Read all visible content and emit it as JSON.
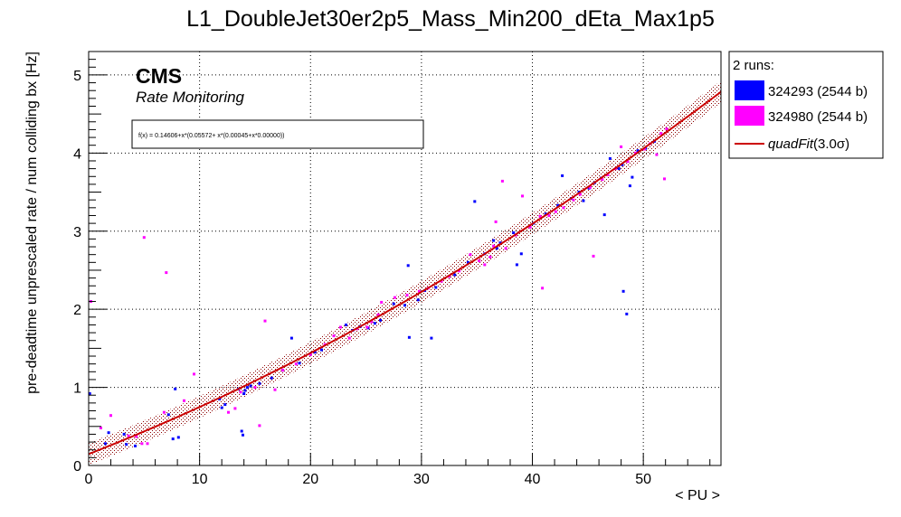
{
  "chart_data": {
    "type": "scatter",
    "title": "L1_DoubleJet30er2p5_Mass_Min200_dEta_Max1p5",
    "xlabel": "< PU >",
    "ylabel": "pre-deadtime unprescaled rate / num colliding bx [Hz]",
    "xlim": [
      0,
      57
    ],
    "ylim": [
      0,
      5.3
    ],
    "x_ticks": [
      0,
      10,
      20,
      30,
      40,
      50
    ],
    "y_ticks": [
      0,
      1,
      2,
      3,
      4,
      5
    ],
    "grid": true,
    "legend_position": "right, outside plot",
    "banner": {
      "experiment": "CMS",
      "subtitle": "Rate Monitoring"
    },
    "fit_formula": "f(x) = 0.14606+x*(0.05572+ x*(0.00045+x*0.00000))",
    "fit": {
      "name": "quadFit(3.0σ)",
      "coefficients": [
        0.14606,
        0.05572,
        0.00045,
        0.0
      ],
      "band_halfwidth": 0.14,
      "color": "#cc0000",
      "band_color": "#8b0000"
    },
    "legend": {
      "header": "2 runs:",
      "entries": [
        {
          "label": "324293 (2544 b)",
          "color": "#0000ff"
        },
        {
          "label": "324980 (2544 b)",
          "color": "#ff00ff"
        },
        {
          "label_prefix": "quadFit",
          "label_suffix": "(3.0σ)",
          "color": "#cc0000"
        }
      ]
    },
    "series": [
      {
        "name": "324293 (2544 b)",
        "color": "#0000ff",
        "points": [
          [
            0.1,
            0.92
          ],
          [
            1.5,
            0.28
          ],
          [
            1.8,
            0.42
          ],
          [
            3.2,
            0.4
          ],
          [
            3.4,
            0.27
          ],
          [
            4.2,
            0.25
          ],
          [
            7.2,
            0.65
          ],
          [
            7.6,
            0.34
          ],
          [
            7.8,
            0.98
          ],
          [
            8.1,
            0.36
          ],
          [
            11.8,
            0.85
          ],
          [
            12.0,
            0.74
          ],
          [
            12.3,
            0.78
          ],
          [
            13.5,
            0.98
          ],
          [
            13.8,
            0.44
          ],
          [
            13.9,
            0.39
          ],
          [
            14.0,
            0.92
          ],
          [
            14.1,
            0.96
          ],
          [
            14.3,
            1.0
          ],
          [
            14.6,
            1.02
          ],
          [
            15.4,
            1.05
          ],
          [
            16.5,
            1.12
          ],
          [
            17.5,
            1.22
          ],
          [
            18.3,
            1.63
          ],
          [
            19.0,
            1.31
          ],
          [
            20.4,
            1.45
          ],
          [
            21.0,
            1.48
          ],
          [
            23.2,
            1.8
          ],
          [
            23.8,
            1.73
          ],
          [
            24.5,
            1.78
          ],
          [
            25.2,
            1.76
          ],
          [
            25.8,
            1.82
          ],
          [
            26.3,
            1.86
          ],
          [
            27.5,
            2.07
          ],
          [
            28.5,
            2.05
          ],
          [
            28.8,
            2.56
          ],
          [
            28.9,
            1.64
          ],
          [
            29.7,
            2.12
          ],
          [
            30.3,
            2.24
          ],
          [
            30.9,
            1.63
          ],
          [
            31.3,
            2.28
          ],
          [
            33.0,
            2.44
          ],
          [
            34.2,
            2.6
          ],
          [
            34.8,
            3.38
          ],
          [
            35.7,
            2.71
          ],
          [
            36.5,
            2.88
          ],
          [
            36.8,
            2.78
          ],
          [
            37.1,
            2.85
          ],
          [
            38.3,
            2.98
          ],
          [
            38.6,
            2.57
          ],
          [
            39.0,
            2.71
          ],
          [
            40.1,
            3.1
          ],
          [
            41.2,
            3.22
          ],
          [
            42.3,
            3.33
          ],
          [
            42.7,
            3.71
          ],
          [
            43.5,
            3.42
          ],
          [
            44.2,
            3.5
          ],
          [
            44.6,
            3.39
          ],
          [
            45.1,
            3.55
          ],
          [
            45.6,
            3.62
          ],
          [
            46.2,
            3.68
          ],
          [
            46.5,
            3.21
          ],
          [
            47.0,
            3.93
          ],
          [
            47.8,
            3.8
          ],
          [
            48.1,
            3.85
          ],
          [
            48.2,
            2.23
          ],
          [
            48.5,
            1.94
          ],
          [
            48.8,
            3.58
          ],
          [
            49.0,
            3.69
          ],
          [
            49.5,
            4.03
          ],
          [
            50.2,
            4.06
          ],
          [
            51.0,
            4.15
          ]
        ]
      },
      {
        "name": "324980 (2544 b)",
        "color": "#ff00ff",
        "points": [
          [
            0.2,
            2.1
          ],
          [
            1.1,
            0.48
          ],
          [
            2.0,
            0.64
          ],
          [
            3.6,
            0.38
          ],
          [
            4.3,
            0.37
          ],
          [
            4.8,
            0.28
          ],
          [
            5.0,
            2.92
          ],
          [
            5.3,
            0.28
          ],
          [
            6.8,
            0.68
          ],
          [
            7.0,
            2.47
          ],
          [
            8.6,
            0.83
          ],
          [
            9.5,
            1.17
          ],
          [
            12.6,
            0.68
          ],
          [
            13.2,
            0.73
          ],
          [
            13.7,
            0.94
          ],
          [
            15.0,
            1.0
          ],
          [
            15.4,
            0.51
          ],
          [
            15.9,
            1.85
          ],
          [
            16.8,
            0.97
          ],
          [
            17.5,
            1.22
          ],
          [
            18.7,
            1.3
          ],
          [
            20.0,
            1.42
          ],
          [
            21.3,
            1.55
          ],
          [
            22.1,
            1.66
          ],
          [
            22.7,
            1.77
          ],
          [
            23.5,
            1.63
          ],
          [
            24.2,
            1.75
          ],
          [
            25.1,
            1.77
          ],
          [
            25.5,
            1.84
          ],
          [
            26.1,
            1.93
          ],
          [
            26.4,
            2.09
          ],
          [
            27.6,
            2.15
          ],
          [
            28.7,
            2.18
          ],
          [
            29.8,
            2.23
          ],
          [
            30.6,
            2.27
          ],
          [
            31.8,
            2.36
          ],
          [
            32.5,
            2.42
          ],
          [
            33.4,
            2.49
          ],
          [
            34.4,
            2.7
          ],
          [
            35.2,
            2.62
          ],
          [
            35.7,
            2.57
          ],
          [
            36.2,
            2.67
          ],
          [
            36.5,
            2.81
          ],
          [
            36.7,
            3.12
          ],
          [
            37.3,
            3.64
          ],
          [
            37.6,
            2.78
          ],
          [
            38.5,
            2.95
          ],
          [
            39.1,
            3.45
          ],
          [
            39.8,
            3.05
          ],
          [
            40.7,
            3.19
          ],
          [
            40.9,
            2.27
          ],
          [
            41.5,
            3.2
          ],
          [
            42.1,
            3.25
          ],
          [
            42.8,
            3.3
          ],
          [
            43.7,
            3.4
          ],
          [
            44.3,
            3.47
          ],
          [
            45.2,
            3.56
          ],
          [
            45.5,
            2.68
          ],
          [
            46.3,
            3.66
          ],
          [
            46.8,
            3.72
          ],
          [
            47.5,
            3.8
          ],
          [
            48.0,
            4.08
          ],
          [
            48.6,
            3.89
          ],
          [
            49.3,
            4.0
          ],
          [
            50.1,
            4.05
          ],
          [
            50.6,
            4.12
          ],
          [
            51.2,
            3.98
          ],
          [
            51.6,
            4.25
          ],
          [
            51.9,
            3.67
          ],
          [
            52.1,
            4.31
          ]
        ]
      }
    ]
  }
}
